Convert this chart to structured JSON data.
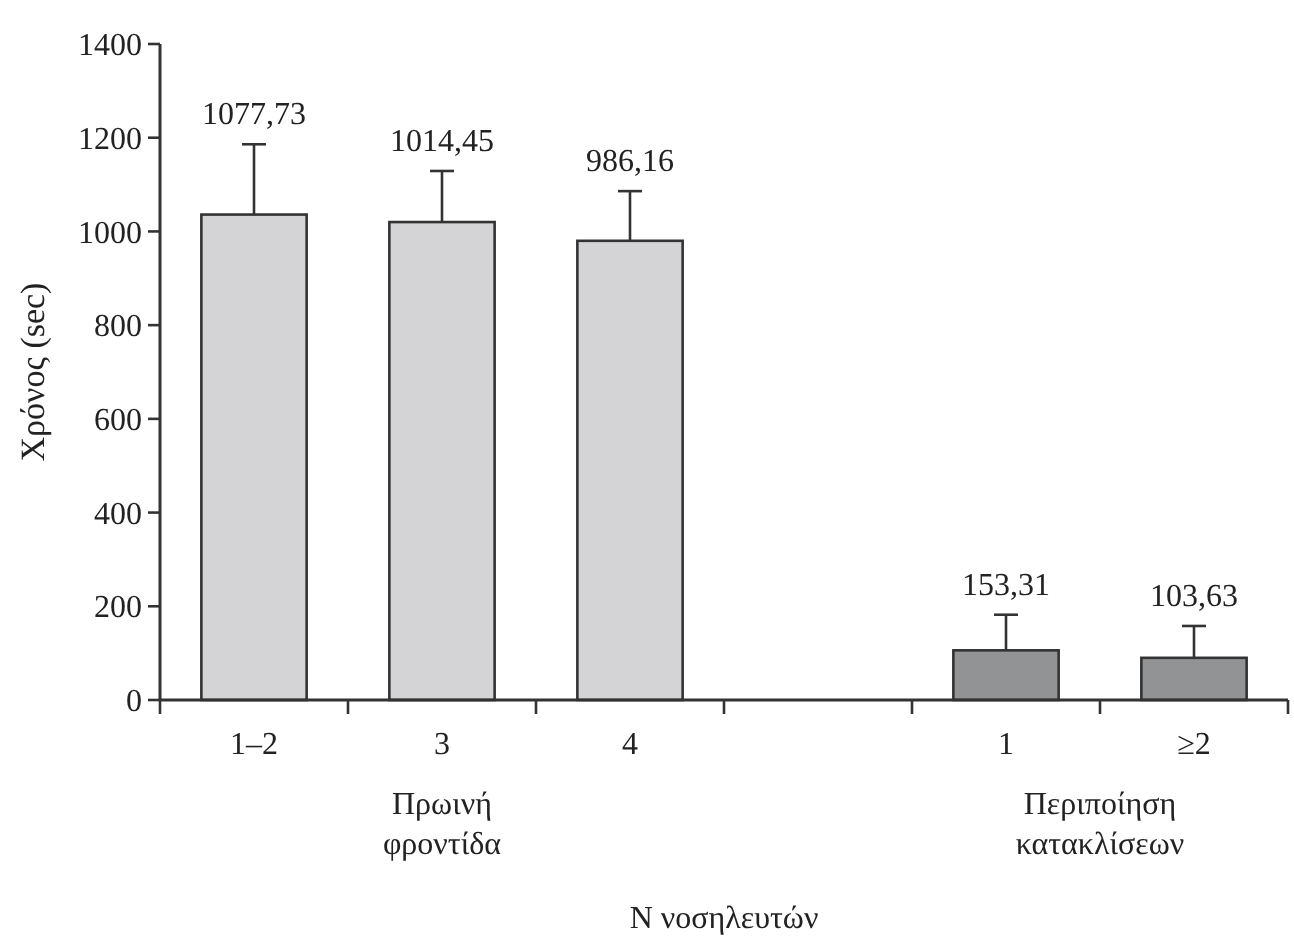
{
  "chart_data": {
    "type": "bar",
    "xlabel": "Ν νοσηλευτών",
    "ylabel": "Χρόνος (sec)",
    "categories": [
      "1–2",
      "3",
      "4",
      null,
      "1",
      "≥2"
    ],
    "values": [
      1036,
      1020,
      980,
      null,
      106,
      90
    ],
    "colors": [
      "#d4d4d6",
      "#d4d4d6",
      "#d4d4d6",
      null,
      "#929395",
      "#929395"
    ],
    "errors": [
      [
        1036,
        1186
      ],
      [
        1020,
        1129
      ],
      [
        980,
        1086
      ],
      null,
      [
        106,
        182
      ],
      [
        90,
        158
      ]
    ],
    "annotations": [
      "Πρωινή φροντίδα",
      "Περιποίηση κατακλίσεων",
      {
        "text": "1077,73",
        "x": "1–2",
        "y": 1186
      },
      {
        "text": "1014,45",
        "x": "3",
        "y": 1129
      },
      {
        "text": "986,16",
        "x": "4",
        "y": 1086
      },
      {
        "text": "153,31",
        "x": "1",
        "y": 182
      },
      {
        "text": "103,63",
        "x": "≥2",
        "y": 158
      }
    ],
    "ylim": [
      0,
      1400
    ],
    "yticks": [
      0,
      200,
      400,
      600,
      800,
      1000,
      1200,
      1400
    ],
    "grid": false
  }
}
